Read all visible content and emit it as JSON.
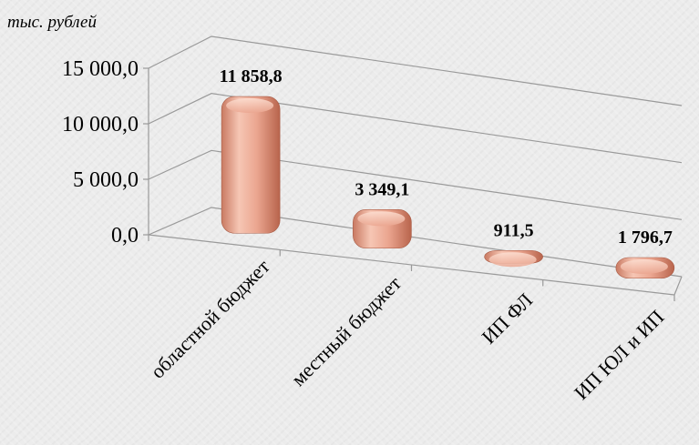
{
  "chart_data": {
    "type": "bar",
    "title": "",
    "unit_label": "тыс. рублей",
    "categories": [
      "областной бюджет",
      "местный бюджет",
      "ИП ФЛ",
      "ИП ЮЛ и ИП"
    ],
    "values": [
      11858.8,
      3349.1,
      911.5,
      1796.7
    ],
    "value_labels": [
      "11 858,8",
      "3 349,1",
      "911,5",
      "1 796,7"
    ],
    "y_ticks": [
      "15 000,0",
      "10 000,0",
      "5 000,0",
      "0,0"
    ],
    "ylim": [
      0,
      15000
    ],
    "grid": true,
    "legend": "none",
    "colors": {
      "bar_light": "#f6c6b4",
      "bar_mid": "#e8a08a",
      "bar_dark": "#b8644c",
      "gridline": "#9a9a9a",
      "axis_text": "#000000"
    }
  }
}
